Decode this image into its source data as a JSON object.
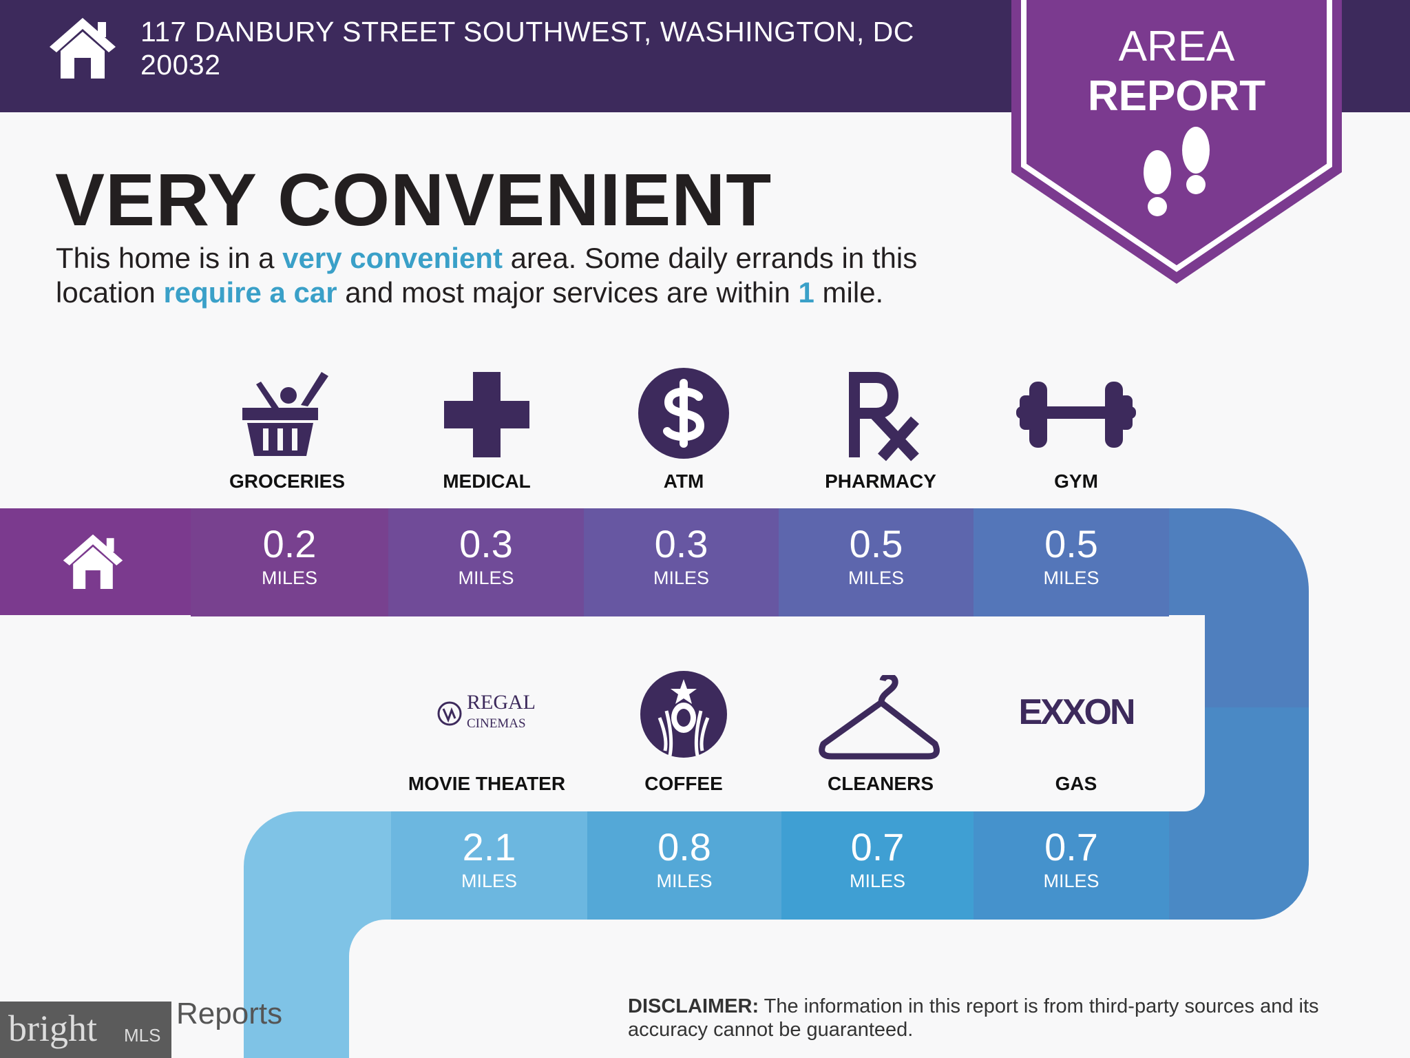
{
  "header": {
    "address_line1": "117 DANBURY STREET SOUTHWEST, WASHINGTON, DC",
    "address_line2": "20032",
    "home_icon": "house-icon"
  },
  "badge": {
    "line1": "AREA",
    "line2": "REPORT",
    "icon": "footprints-icon",
    "color": "#7b3a8f"
  },
  "rating": {
    "title": "VERY CONVENIENT",
    "p1": "This home is in a ",
    "h1": "very convenient",
    "p2": " area. Some daily errands in this",
    "p3": "location ",
    "h2": "require a car",
    "p4": " and most major services are within ",
    "h3": "1",
    "p5": " mile."
  },
  "row1": [
    {
      "label": "GROCERIES",
      "value": "0.2",
      "unit": "MILES",
      "icon": "grocery-basket-icon",
      "color": "#78418f"
    },
    {
      "label": "MEDICAL",
      "value": "0.3",
      "unit": "MILES",
      "icon": "medical-cross-icon",
      "color": "#704b98"
    },
    {
      "label": "ATM",
      "value": "0.3",
      "unit": "MILES",
      "icon": "dollar-icon",
      "color": "#6757a2"
    },
    {
      "label": "PHARMACY",
      "value": "0.5",
      "unit": "MILES",
      "icon": "rx-icon",
      "color": "#5d66ad"
    },
    {
      "label": "GYM",
      "value": "0.5",
      "unit": "MILES",
      "icon": "dumbbell-icon",
      "color": "#5476b9"
    }
  ],
  "row2": [
    {
      "label": "MOVIE THEATER",
      "value": "2.1",
      "unit": "MILES",
      "icon": "regal-cinemas-logo",
      "logo_text1": "REGAL",
      "logo_text2": "CINEMAS",
      "color": "#6cb7e0"
    },
    {
      "label": "COFFEE",
      "value": "0.8",
      "unit": "MILES",
      "icon": "starbucks-logo",
      "color": "#54a8d7"
    },
    {
      "label": "CLEANERS",
      "value": "0.7",
      "unit": "MILES",
      "icon": "hanger-icon",
      "color": "#3f9fd3"
    },
    {
      "label": "GAS",
      "value": "0.7",
      "unit": "MILES",
      "icon": "exxon-logo",
      "logo_text": "EXXON",
      "color": "#4592cc"
    }
  ],
  "footer": {
    "brand_partial": "Reports",
    "disclaimer_label": "DISCLAIMER:",
    "disclaimer_text": " The information in this report is from third-party sources and its accuracy cannot be guaranteed."
  },
  "watermark": {
    "text": "bright",
    "suffix": "MLS"
  }
}
